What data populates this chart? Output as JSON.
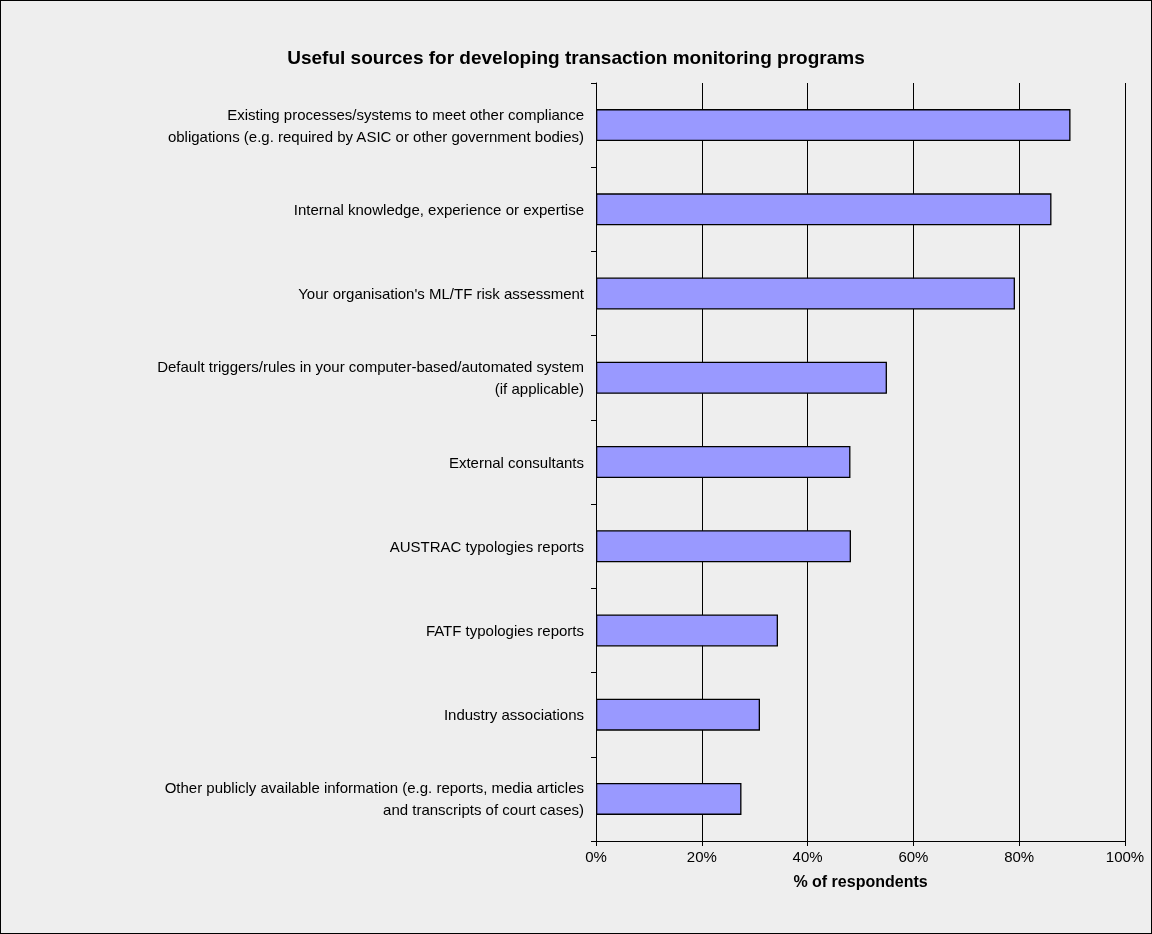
{
  "chart_data": {
    "type": "bar",
    "orientation": "horizontal",
    "title": "Useful sources for developing transaction monitoring programs",
    "xlabel": "% of respondents",
    "categories": [
      "Existing processes/systems to meet other compliance\nobligations (e.g. required by ASIC or other government bodies)",
      "Internal knowledge, experience or expertise",
      "Your organisation's ML/TF risk assessment",
      "Default triggers/rules in your computer-based/automated system\n(if applicable)",
      "External consultants",
      "AUSTRAC typologies reports",
      "FATF typologies reports",
      "Industry associations",
      "Other publicly available information (e.g. reports, media articles\nand transcripts of court cases)"
    ],
    "values": [
      89.7,
      86.1,
      79.2,
      55.0,
      48.1,
      48.2,
      34.4,
      31.0,
      27.5
    ],
    "color": "#9999ff",
    "xlim": [
      0,
      100
    ],
    "xticks": [
      {
        "value": 0,
        "label": "0%"
      },
      {
        "value": 20,
        "label": "20%"
      },
      {
        "value": 40,
        "label": "40%"
      },
      {
        "value": 60,
        "label": "60%"
      },
      {
        "value": 80,
        "label": "80%"
      },
      {
        "value": 100,
        "label": "100%"
      }
    ],
    "grid": "x"
  }
}
